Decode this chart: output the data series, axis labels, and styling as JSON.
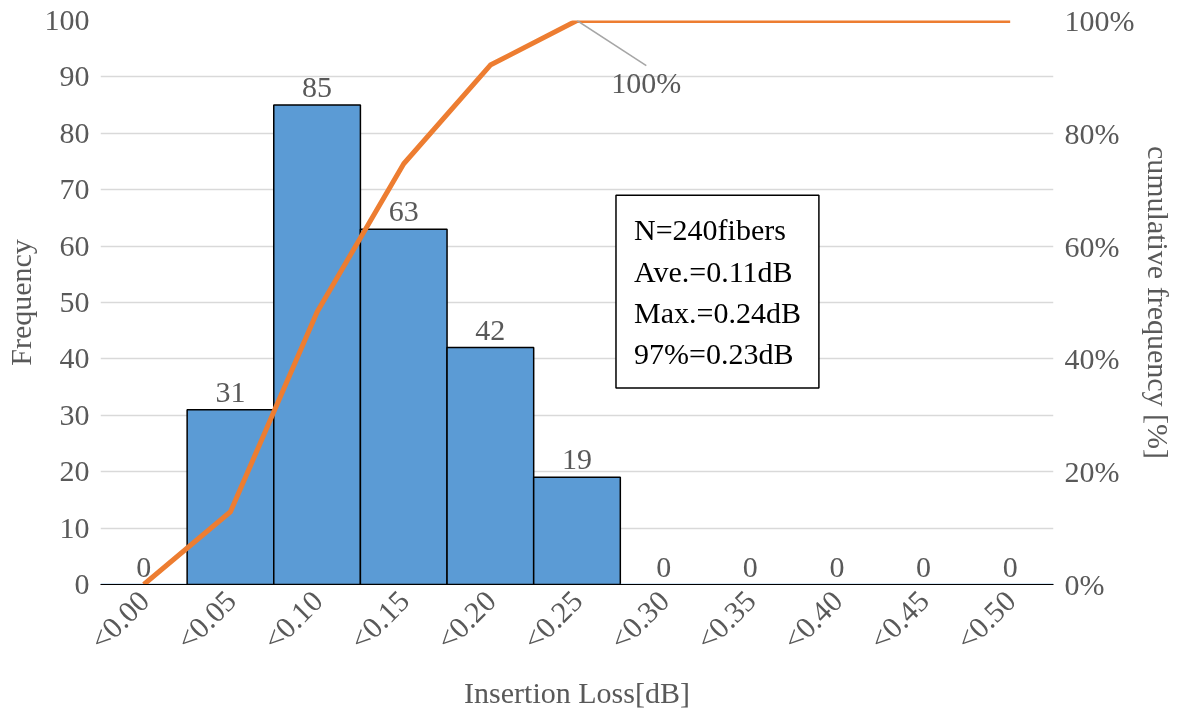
{
  "chart_data": {
    "type": "bar",
    "xlabel": "Insertion Loss[dB]",
    "ylabel": "Frequency",
    "y2label": "cumulative frequency [%]",
    "categories": [
      "<0.00",
      "<0.05",
      "<0.10",
      "<0.15",
      "<0.20",
      "<0.25",
      "<0.30",
      "<0.35",
      "<0.40",
      "<0.45",
      "<0.50"
    ],
    "series": [
      {
        "color": "#5b9bd5",
        "values": [
          0,
          31,
          85,
          63,
          42,
          19,
          0,
          0,
          0,
          0,
          0
        ],
        "value_labels": [
          "0",
          "31",
          "85",
          "63",
          "42",
          "19",
          "0",
          "0",
          "0",
          "0",
          "0"
        ]
      },
      {
        "type": "line",
        "axis": "y2",
        "color": "#ed7d31",
        "values": [
          0,
          12.9,
          48.3,
          74.6,
          92.1,
          100,
          100,
          100,
          100,
          100,
          100
        ]
      }
    ],
    "ylim": [
      0,
      100
    ],
    "yticks": [
      0,
      10,
      20,
      30,
      40,
      50,
      60,
      70,
      80,
      90,
      100
    ],
    "y2lim": [
      0,
      100
    ],
    "y2ticks": [
      {
        "value": 0,
        "label": "0%"
      },
      {
        "value": 20,
        "label": "20%"
      },
      {
        "value": 40,
        "label": "40%"
      },
      {
        "value": 60,
        "label": "60%"
      },
      {
        "value": 80,
        "label": "80%"
      },
      {
        "value": 100,
        "label": "100%"
      }
    ],
    "grid": "y",
    "marker": "none",
    "line_style": "solid",
    "annotations": [
      {
        "text": "100%",
        "x": "<0.25",
        "y": 100
      },
      "N=240fibers",
      "Ave.=0.11dB",
      "Max.=0.24dB",
      "97%=0.23dB"
    ]
  }
}
